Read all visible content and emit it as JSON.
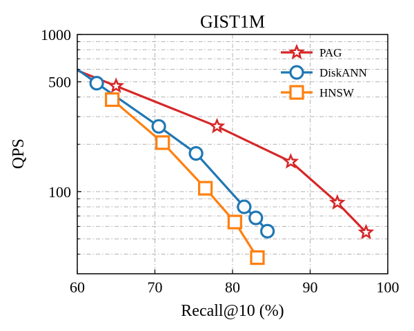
{
  "chart_data": {
    "type": "line",
    "title": "GIST1M",
    "xlabel": "Recall@10 (%)",
    "ylabel": "QPS",
    "xlim": [
      60,
      100
    ],
    "ylim": [
      30,
      1000
    ],
    "yscale": "log",
    "grid": true,
    "legend_position": "top-right",
    "x_ticks": [
      60,
      70,
      80,
      90,
      100
    ],
    "x_tick_labels": [
      "60",
      "70",
      "80",
      "90",
      "100"
    ],
    "y_ticks": [
      100,
      500,
      1000
    ],
    "y_tick_labels": [
      "100",
      "500",
      "1000"
    ],
    "series": [
      {
        "name": "PAG",
        "color": "#d62728",
        "marker": "star",
        "points": [
          [
            60,
            590
          ],
          [
            65,
            470
          ],
          [
            78,
            260
          ],
          [
            87.5,
            155
          ],
          [
            93.5,
            85
          ],
          [
            97.2,
            55
          ]
        ]
      },
      {
        "name": "DiskANN",
        "color": "#1f77b4",
        "marker": "circle",
        "points": [
          [
            60,
            600
          ],
          [
            62.5,
            490
          ],
          [
            70.5,
            260
          ],
          [
            75.3,
            175
          ],
          [
            81.5,
            80
          ],
          [
            83,
            68
          ],
          [
            84.5,
            56
          ]
        ]
      },
      {
        "name": "HNSW",
        "color": "#ff7f0e",
        "marker": "square",
        "points": [
          [
            64.5,
            385
          ],
          [
            71,
            205
          ],
          [
            76.5,
            105
          ],
          [
            80.3,
            64
          ],
          [
            83.2,
            38
          ]
        ]
      }
    ]
  }
}
